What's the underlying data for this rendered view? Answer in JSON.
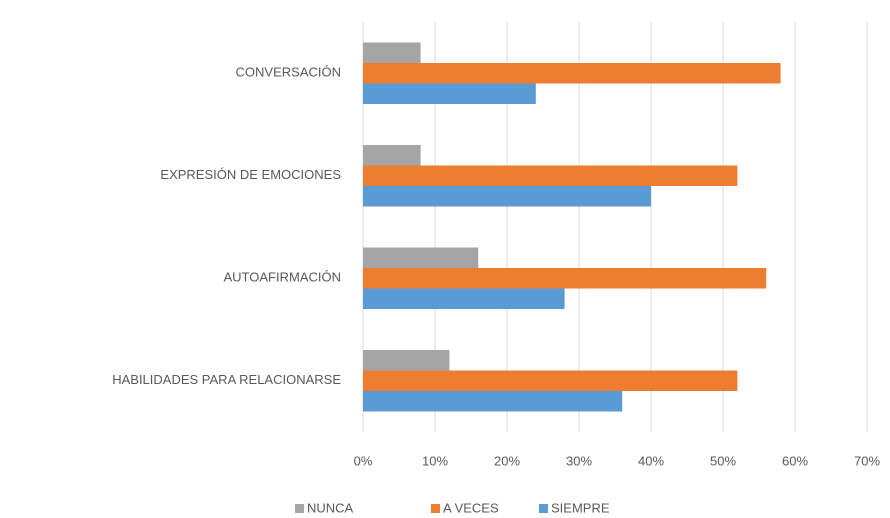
{
  "chart_data": {
    "type": "hbar",
    "categories": [
      "CONVERSACIÓN",
      "EXPRESIÓN DE EMOCIONES",
      "AUTOAFIRMACIÓN",
      "HABILIDADES PARA RELACIONARSE"
    ],
    "series": [
      {
        "name": "NUNCA",
        "color": "#a5a5a5",
        "values": [
          8,
          8,
          16,
          12
        ]
      },
      {
        "name": "A VECES",
        "color": "#ed7d31",
        "values": [
          58,
          52,
          56,
          52
        ]
      },
      {
        "name": "SIEMPRE",
        "color": "#5b9bd5",
        "values": [
          24,
          40,
          28,
          36
        ]
      }
    ],
    "xlim": [
      0,
      70
    ],
    "xticks": [
      {
        "value": 0,
        "label": "0%"
      },
      {
        "value": 10,
        "label": "10%"
      },
      {
        "value": 20,
        "label": "20%"
      },
      {
        "value": 30,
        "label": "30%"
      },
      {
        "value": 40,
        "label": "40%"
      },
      {
        "value": 50,
        "label": "50%"
      },
      {
        "value": 60,
        "label": "60%"
      },
      {
        "value": 70,
        "label": "70%"
      }
    ],
    "grid": true,
    "legend": "bottom"
  }
}
